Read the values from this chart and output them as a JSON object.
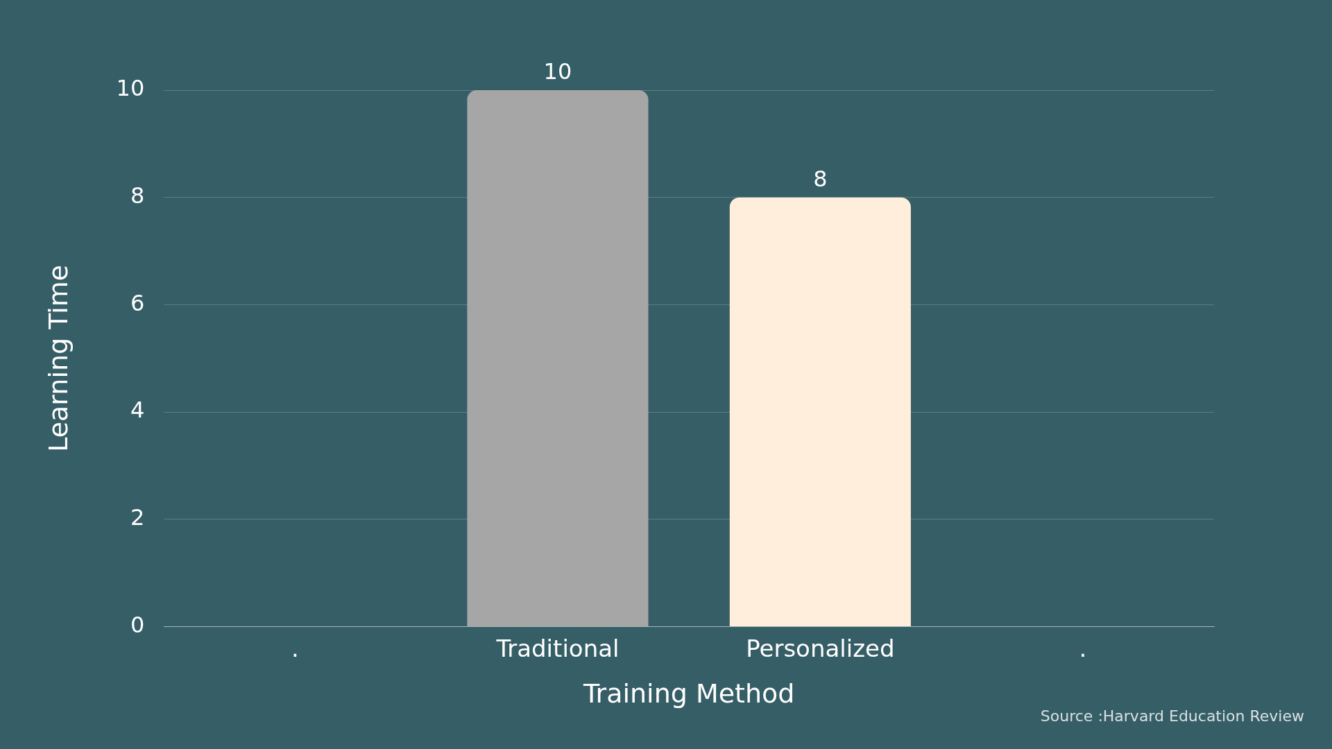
{
  "chart_data": {
    "type": "bar",
    "xlabel": "Training Method",
    "ylabel": "Learning Time",
    "categories": [
      ".",
      "Traditional",
      "Personalized",
      "."
    ],
    "values": [
      null,
      10,
      8,
      null
    ],
    "colors": [
      "#a6a6a6",
      "#a6a6a6",
      "#ffeedb",
      "#a6a6a6"
    ],
    "ylim": [
      0,
      10
    ],
    "yticks": [
      0,
      2,
      4,
      6,
      8,
      10
    ],
    "grid": "y",
    "legend": false,
    "data_labels": true,
    "annotations": [
      "Source :Harvard Education Review"
    ]
  }
}
